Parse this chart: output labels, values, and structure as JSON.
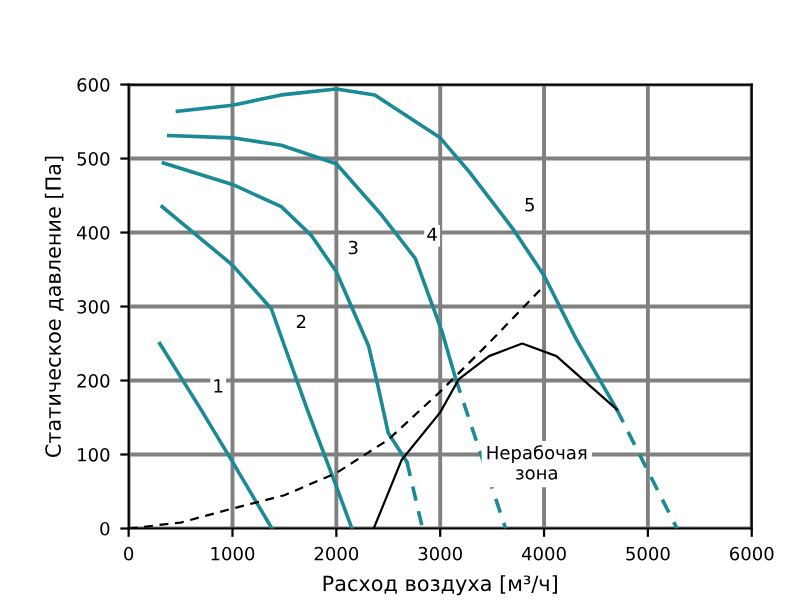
{
  "chart_data": {
    "type": "line",
    "xlabel": "Расход воздуха [м³/ч]",
    "ylabel": "Статическое давление [Па]",
    "xlim": [
      0,
      6000
    ],
    "ylim": [
      0,
      600
    ],
    "xticks": [
      0,
      1000,
      2000,
      3000,
      4000,
      5000,
      6000
    ],
    "yticks": [
      0,
      100,
      200,
      300,
      400,
      500,
      600
    ],
    "grid": true,
    "marker": "none",
    "series": [
      {
        "color": "#1a8a96",
        "line_style": "solid",
        "x": [
          300,
          700,
          1000,
          1380
        ],
        "values": [
          250,
          160,
          90,
          0
        ]
      },
      {
        "color": "#1a8a96",
        "line_style": "solid",
        "x": [
          323,
          1000,
          1374,
          1500,
          1730,
          2000,
          2150
        ],
        "values": [
          435,
          356,
          297,
          247,
          157,
          57,
          0
        ]
      },
      {
        "color": "#1a8a96",
        "line_style": "solid",
        "x": [
          335,
          1000,
          1470,
          1760,
          2000,
          2310,
          2400,
          2500,
          2680
        ],
        "values": [
          494,
          465,
          435,
          396,
          347,
          247,
          193,
          129,
          90
        ]
      },
      {
        "color": "#1a8a96",
        "line_style": "dashed",
        "x": [
          2680,
          2830
        ],
        "values": [
          90,
          0
        ]
      },
      {
        "color": "#1a8a96",
        "line_style": "solid",
        "x": [
          387,
          1000,
          1470,
          2000,
          2440,
          2760,
          3020,
          3150
        ],
        "values": [
          531,
          528,
          518,
          493,
          423,
          365,
          265,
          202
        ]
      },
      {
        "color": "#1a8a96",
        "line_style": "dashed",
        "x": [
          3150,
          3630
        ],
        "values": [
          202,
          0
        ]
      },
      {
        "color": "#1a8a96",
        "line_style": "solid",
        "x": [
          470,
          1000,
          1470,
          2000,
          2370,
          3000,
          3280,
          3700,
          4000,
          4310,
          4700
        ],
        "values": [
          564,
          572,
          586,
          594,
          586,
          528,
          482,
          405,
          342,
          256,
          161
        ]
      },
      {
        "color": "#1a8a96",
        "line_style": "dashed",
        "x": [
          4700,
          5280
        ],
        "values": [
          161,
          0
        ]
      },
      {
        "color": "#000000",
        "line_style": "dashed",
        "x": [
          0,
          500,
          1000,
          1500,
          2000,
          2500,
          3000,
          3500,
          4000
        ],
        "values": [
          0,
          8,
          27,
          45,
          75,
          120,
          185,
          255,
          328
        ]
      },
      {
        "color": "#000000",
        "line_style": "solid",
        "x": [
          2360,
          2630,
          3000,
          3180,
          3470,
          3790,
          4120,
          4440,
          4700
        ],
        "values": [
          0,
          93,
          157,
          202,
          233,
          250,
          233,
          193,
          161
        ]
      }
    ],
    "annotations": [
      {
        "text": "1",
        "x": 700,
        "y": 160
      },
      {
        "text": "2",
        "x": 1500,
        "y": 247
      },
      {
        "text": "3",
        "x": 2000,
        "y": 347
      },
      {
        "text": "4",
        "x": 2760,
        "y": 365
      },
      {
        "text": "5",
        "x": 3700,
        "y": 405
      },
      "Нерабочая\nзона"
    ]
  }
}
